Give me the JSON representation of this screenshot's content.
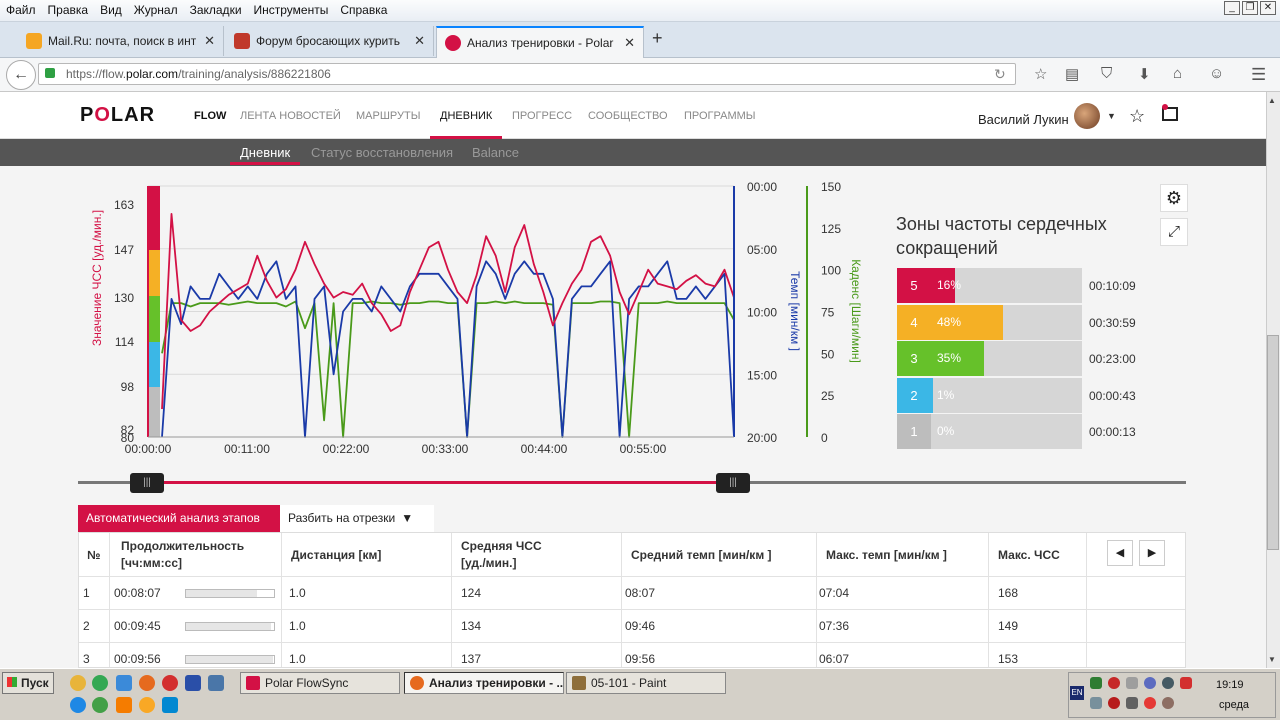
{
  "menubar": {
    "items": [
      "Файл",
      "Правка",
      "Вид",
      "Журнал",
      "Закладки",
      "Инструменты",
      "Справка"
    ]
  },
  "tabs": [
    {
      "title": "Mail.Ru: почта, поиск в инт...",
      "color": "#f5a623"
    },
    {
      "title": "Форум бросающих курить",
      "color": "#c0392b"
    },
    {
      "title": "Анализ тренировки - Polar F...",
      "color": "#d31145"
    }
  ],
  "address": {
    "prefix": "https://flow.",
    "domain": "polar.com",
    "path": "/training/analysis/886221806"
  },
  "polar": {
    "logo_a": "P",
    "logo_o": "O",
    "logo_b": "LAR",
    "flow": "FLOW",
    "nav": [
      "ЛЕНТА НОВОСТЕЙ",
      "МАРШРУТЫ",
      "ДНЕВНИК",
      "ПРОГРЕСС",
      "СООБЩЕСТВО",
      "ПРОГРАММЫ"
    ],
    "user": "Василий Лукин",
    "subnav": [
      "Дневник",
      "Статус восстановления",
      "Balance"
    ]
  },
  "chart_data": {
    "type": "line",
    "x_ticks": [
      "00:00:00",
      "00:11:00",
      "00:22:00",
      "00:33:00",
      "00:44:00",
      "00:55:00"
    ],
    "hr_ticks": [
      "163",
      "147",
      "130",
      "114",
      "98",
      "82",
      "80"
    ],
    "pace_ticks": [
      "00:00",
      "05:00",
      "10:00",
      "15:00",
      "20:00"
    ],
    "cadence_ticks": [
      "150",
      "125",
      "100",
      "75",
      "50",
      "25",
      "0"
    ],
    "ylabel_hr": "Значение ЧСС [уд./мин.]",
    "ylabel_pace": "Темп [мин/км ]",
    "ylabel_cadence": "Каденс [Шаги/мин]",
    "colors": {
      "hr": "#d31145",
      "pace": "#1a3aa8",
      "cadence": "#4a9a1a"
    },
    "series": [
      {
        "name": "Значение ЧСС [уд./мин.]",
        "x": [
          0,
          1,
          2,
          3,
          4,
          5,
          6,
          7,
          8,
          9,
          10,
          11,
          12,
          13,
          14,
          15,
          16,
          17,
          18,
          19,
          20,
          21,
          22,
          23,
          24,
          25,
          26,
          27,
          28,
          29,
          30,
          31,
          32,
          33,
          34,
          35,
          36,
          37,
          38,
          39,
          40,
          41,
          42,
          43,
          44,
          45,
          46,
          47,
          48,
          49,
          50,
          51,
          52,
          53,
          54,
          55,
          56,
          57,
          58,
          59,
          60
        ],
        "values": [
          90,
          160,
          122,
          118,
          120,
          125,
          128,
          131,
          133,
          135,
          145,
          136,
          130,
          133,
          140,
          150,
          142,
          135,
          130,
          132,
          131,
          135,
          128,
          124,
          118,
          120,
          132,
          140,
          148,
          150,
          140,
          132,
          128,
          138,
          152,
          145,
          132,
          148,
          156,
          142,
          132,
          120,
          128,
          135,
          140,
          150,
          152,
          145,
          132,
          124,
          132,
          140,
          135,
          134,
          133,
          136,
          138,
          135,
          134,
          140,
          130
        ]
      },
      {
        "name": "Темп [мин/км ]",
        "x": [
          0,
          1,
          2,
          3,
          4,
          5,
          6,
          7,
          8,
          9,
          10,
          11,
          12,
          13,
          14,
          15,
          16,
          17,
          18,
          19,
          20,
          21,
          22,
          23,
          24,
          25,
          26,
          27,
          28,
          29,
          30,
          31,
          32,
          33,
          34,
          35,
          36,
          37,
          38,
          39,
          40,
          41,
          42,
          43,
          44,
          45,
          46,
          47,
          48,
          49,
          50,
          51,
          52,
          53,
          54,
          55,
          56,
          57,
          58,
          59,
          60
        ],
        "values": [
          20,
          9,
          11,
          8,
          9,
          9,
          7,
          8,
          9,
          8,
          9,
          7,
          6,
          9,
          8,
          20,
          9,
          8,
          15,
          10,
          9,
          9,
          10,
          8,
          9,
          10,
          8,
          7,
          7,
          7,
          8,
          9,
          20,
          8,
          6,
          7,
          9,
          7,
          6,
          7,
          7,
          9,
          20,
          9,
          8,
          8,
          7,
          6,
          20,
          9,
          8,
          8,
          7,
          6,
          9,
          9,
          8,
          9,
          8,
          7,
          20
        ]
      },
      {
        "name": "Каденс [Шаги/мин]",
        "x": [
          0,
          1,
          2,
          3,
          4,
          5,
          6,
          7,
          8,
          9,
          10,
          11,
          12,
          13,
          14,
          15,
          16,
          17,
          18,
          19,
          20,
          21,
          22,
          23,
          24,
          25,
          26,
          27,
          28,
          29,
          30,
          31,
          32,
          33,
          34,
          35,
          36,
          37,
          38,
          39,
          40,
          41,
          42,
          43,
          44,
          45,
          46,
          47,
          48,
          49,
          50,
          51,
          52,
          53,
          54,
          55,
          56,
          57,
          58,
          59,
          60
        ],
        "values": [
          50,
          80,
          80,
          78,
          80,
          80,
          80,
          79,
          80,
          81,
          80,
          80,
          80,
          78,
          81,
          65,
          80,
          10,
          80,
          0,
          80,
          80,
          81,
          80,
          80,
          79,
          80,
          80,
          81,
          81,
          80,
          80,
          0,
          80,
          80,
          81,
          80,
          81,
          80,
          80,
          80,
          79,
          0,
          80,
          80,
          80,
          81,
          81,
          80,
          0,
          80,
          80,
          80,
          81,
          80,
          80,
          80,
          80,
          80,
          80,
          70
        ]
      }
    ]
  },
  "zones": {
    "title": "Зоны частоты сердечных сокращений",
    "rows": [
      {
        "zone": "5",
        "pct_label": "16%",
        "pct": 16,
        "time": "00:10:09",
        "color": "#d31145"
      },
      {
        "zone": "4",
        "pct_label": "48%",
        "pct": 48,
        "time": "00:30:59",
        "color": "#f5b025"
      },
      {
        "zone": "3",
        "pct_label": "35%",
        "pct": 35,
        "time": "00:23:00",
        "color": "#66c12a"
      },
      {
        "zone": "2",
        "pct_label": "1%",
        "pct": 1,
        "time": "00:00:43",
        "color": "#3bb7e6"
      },
      {
        "zone": "1",
        "pct_label": "0%",
        "pct": 0,
        "time": "00:00:13",
        "color": "#bdbdbd"
      }
    ]
  },
  "laps": {
    "auto_btn": "Автоматический анализ этапов",
    "split_btn": "Разбить на отрезки",
    "headers": [
      "№",
      "Продолжительность\n[чч:мм:сс]",
      "Дистанция [км]",
      "Средняя ЧСС\n[уд./мин.]",
      "Средний темп [мин/км ]",
      "Макс. темп [мин/км ]",
      "Макс. ЧСС"
    ],
    "rows": [
      {
        "n": "1",
        "dur": "00:08:07",
        "fill": 0.81,
        "dist": "1.0",
        "avg_hr": "124",
        "avg_pace": "08:07",
        "max_pace": "07:04",
        "max_hr": "168"
      },
      {
        "n": "2",
        "dur": "00:09:45",
        "fill": 0.97,
        "dist": "1.0",
        "avg_hr": "134",
        "avg_pace": "09:46",
        "max_pace": "07:36",
        "max_hr": "149"
      },
      {
        "n": "3",
        "dur": "00:09:56",
        "fill": 0.99,
        "dist": "1.0",
        "avg_hr": "137",
        "avg_pace": "09:56",
        "max_pace": "06:07",
        "max_hr": "153"
      }
    ]
  },
  "taskbar": {
    "start": "Пуск",
    "tasks": [
      "Polar FlowSync",
      "Анализ тренировки - ...",
      "05-101 - Paint"
    ],
    "time": "19:19",
    "day": "среда",
    "lang": "EN"
  }
}
